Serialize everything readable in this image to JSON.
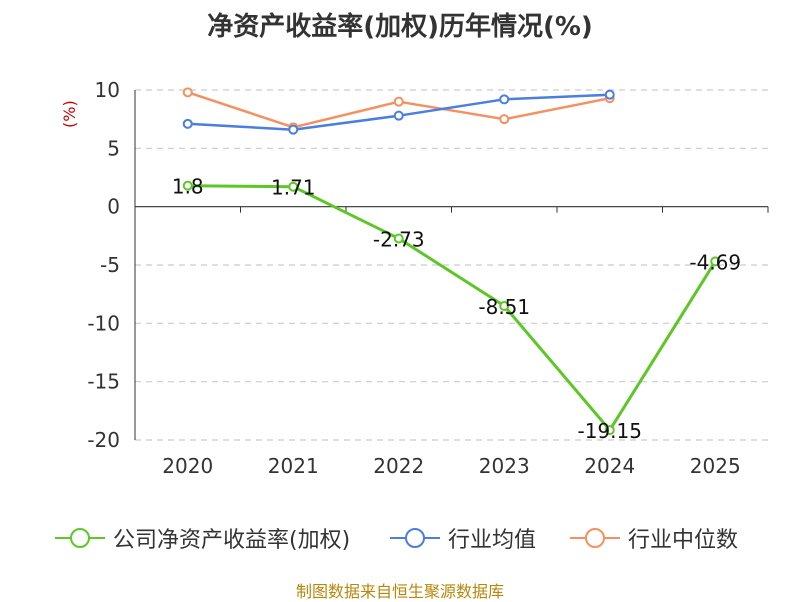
{
  "chart_data": {
    "type": "line",
    "title": "净资产收益率(加权)历年情况(%)",
    "ylabel": "(%)",
    "ylim": [
      -20,
      10
    ],
    "yticks": [
      10,
      5,
      0,
      -5,
      -10,
      -15,
      -20
    ],
    "categories": [
      "2020",
      "2021",
      "2022",
      "2023",
      "2024",
      "2025"
    ],
    "grid": true,
    "legend_position": "bottom",
    "series": [
      {
        "name": "公司净资产收益率(加权)",
        "color": "#5cc725",
        "values": [
          1.8,
          1.71,
          -2.73,
          -8.51,
          -19.15,
          -4.69
        ],
        "labels": [
          "1.8",
          "1.71",
          "-2.73",
          "-8.51",
          "-19.15",
          "-4.69"
        ]
      },
      {
        "name": "行业均值",
        "color": "#4a7ee0",
        "values": [
          7.1,
          6.6,
          7.8,
          9.2,
          9.6,
          null
        ]
      },
      {
        "name": "行业中位数",
        "color": "#f59060",
        "values": [
          9.8,
          6.8,
          9.0,
          7.5,
          9.3,
          null
        ]
      }
    ],
    "source": "制图数据来自恒生聚源数据库"
  }
}
